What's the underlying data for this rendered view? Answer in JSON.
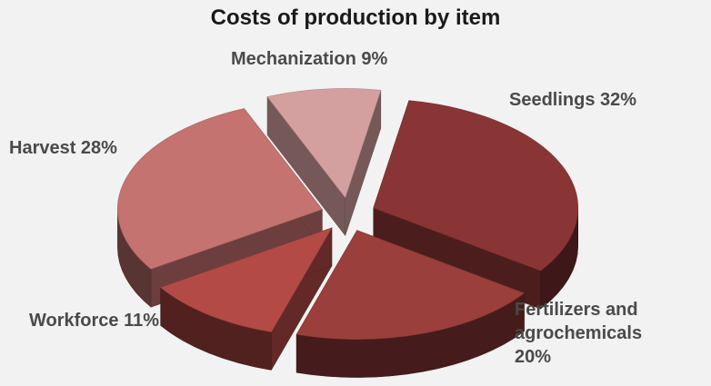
{
  "chart_data": {
    "type": "pie",
    "style": "3d-exploded",
    "title": "Costs of production by item",
    "slices": [
      {
        "label": "Seedlings",
        "value": 32,
        "display": "Seedlings 32%",
        "color": "#8a3535"
      },
      {
        "label": "Fertilizers and agrochemicals",
        "value": 20,
        "display": "Fertilizers and\nagrochemicals\n20%",
        "color": "#9a3f3c"
      },
      {
        "label": "Workforce",
        "value": 11,
        "display": "Workforce 11%",
        "color": "#b44a46"
      },
      {
        "label": "Harvest",
        "value": 28,
        "display": "Harvest 28%",
        "color": "#c47370"
      },
      {
        "label": "Mechanization",
        "value": 9,
        "display": "Mechanization 9%",
        "color": "#d4a09f"
      }
    ]
  }
}
